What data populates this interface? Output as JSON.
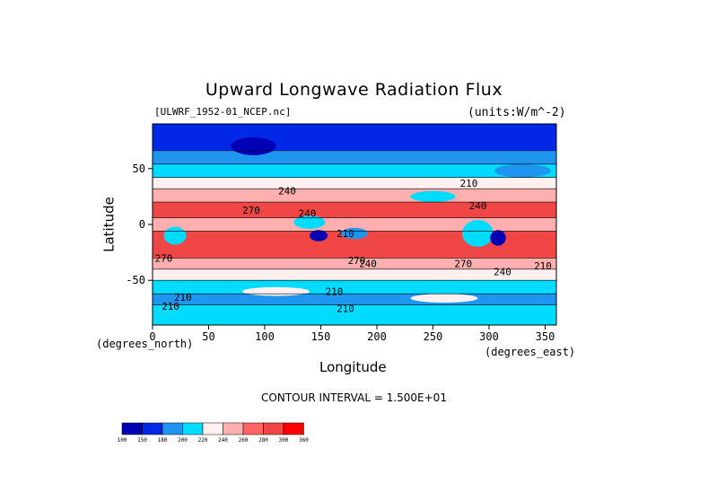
{
  "chart_data": {
    "type": "heatmap",
    "title": "Upward Longwave Radiation Flux",
    "source_label": "[ULWRF_1952-01_NCEP.nc]",
    "units_label": "(units:W/m^-2)",
    "xlabel": "Longitude",
    "ylabel": "Latitude",
    "x_unit_note": "(degrees_east)",
    "y_unit_note": "(degrees_north)",
    "xlim": [
      0,
      360
    ],
    "ylim": [
      -90,
      90
    ],
    "x_ticks": [
      0,
      50,
      100,
      150,
      200,
      250,
      300,
      350
    ],
    "y_ticks": [
      -50,
      0,
      50
    ],
    "contour_interval_text": "CONTOUR INTERVAL = 1.500E+01",
    "contour_labels": [
      {
        "text": "240",
        "x": 120,
        "y": 30
      },
      {
        "text": "270",
        "x": 88,
        "y": 13
      },
      {
        "text": "240",
        "x": 138,
        "y": 10
      },
      {
        "text": "210",
        "x": 172,
        "y": -8
      },
      {
        "text": "270",
        "x": 10,
        "y": -30
      },
      {
        "text": "270",
        "x": 182,
        "y": -32
      },
      {
        "text": "240",
        "x": 192,
        "y": -35
      },
      {
        "text": "210",
        "x": 282,
        "y": 37
      },
      {
        "text": "240",
        "x": 290,
        "y": 17
      },
      {
        "text": "270",
        "x": 277,
        "y": -35
      },
      {
        "text": "240",
        "x": 312,
        "y": -42
      },
      {
        "text": "210",
        "x": 27,
        "y": -65
      },
      {
        "text": "210",
        "x": 16,
        "y": -73
      },
      {
        "text": "210",
        "x": 162,
        "y": -60
      },
      {
        "text": "210",
        "x": 172,
        "y": -75
      },
      {
        "text": "210",
        "x": 348,
        "y": -37
      }
    ],
    "colorbar": {
      "levels": [
        "100",
        "150",
        "180",
        "200",
        "220",
        "240",
        "260",
        "280",
        "300",
        "360"
      ],
      "colors": [
        "#0000b4",
        "#0028e6",
        "#1e96f0",
        "#00dcff",
        "#fff0f0",
        "#ffafaf",
        "#ff6464",
        "#f04646",
        "#ff0000"
      ]
    },
    "bands": [
      {
        "lat_top": 90,
        "lat_bottom": 66,
        "color": "#0028e6"
      },
      {
        "lat_top": 66,
        "lat_bottom": 54,
        "color": "#1e96f0"
      },
      {
        "lat_top": 54,
        "lat_bottom": 42,
        "color": "#00dcff"
      },
      {
        "lat_top": 42,
        "lat_bottom": 32,
        "color": "#fff0f0"
      },
      {
        "lat_top": 32,
        "lat_bottom": 20,
        "color": "#ffafaf"
      },
      {
        "lat_top": 20,
        "lat_bottom": 6,
        "color": "#f04646"
      },
      {
        "lat_top": 6,
        "lat_bottom": -6,
        "color": "#ffafaf"
      },
      {
        "lat_top": -6,
        "lat_bottom": -30,
        "color": "#f04646"
      },
      {
        "lat_top": -30,
        "lat_bottom": -40,
        "color": "#ffafaf"
      },
      {
        "lat_top": -40,
        "lat_bottom": -50,
        "color": "#fff0f0"
      },
      {
        "lat_top": -50,
        "lat_bottom": -62,
        "color": "#00dcff"
      },
      {
        "lat_top": -62,
        "lat_bottom": -72,
        "color": "#1e96f0"
      },
      {
        "lat_top": -72,
        "lat_bottom": -90,
        "color": "#00dcff"
      }
    ],
    "patches": [
      {
        "lon": 290,
        "lat": -8,
        "rlon": 14,
        "rlat": 12,
        "color": "#00dcff"
      },
      {
        "lon": 308,
        "lat": -12,
        "rlon": 7,
        "rlat": 7,
        "color": "#0000b4"
      },
      {
        "lon": 148,
        "lat": -10,
        "rlon": 8,
        "rlat": 5,
        "color": "#0000b4"
      },
      {
        "lon": 140,
        "lat": 2,
        "rlon": 14,
        "rlat": 6,
        "color": "#00dcff"
      },
      {
        "lon": 20,
        "lat": -10,
        "rlon": 10,
        "rlat": 8,
        "color": "#00dcff"
      },
      {
        "lon": 180,
        "lat": -8,
        "rlon": 12,
        "rlat": 5,
        "color": "#1e96f0"
      },
      {
        "lon": 250,
        "lat": 25,
        "rlon": 20,
        "rlat": 5,
        "color": "#00dcff"
      },
      {
        "lon": 90,
        "lat": 70,
        "rlon": 20,
        "rlat": 8,
        "color": "#0000b4"
      },
      {
        "lon": 330,
        "lat": 48,
        "rlon": 25,
        "rlat": 6,
        "color": "#1e96f0"
      },
      {
        "lon": 110,
        "lat": -60,
        "rlon": 30,
        "rlat": 4,
        "color": "#fff0f0"
      },
      {
        "lon": 260,
        "lat": -66,
        "rlon": 30,
        "rlat": 4,
        "color": "#fff0f0"
      }
    ]
  }
}
